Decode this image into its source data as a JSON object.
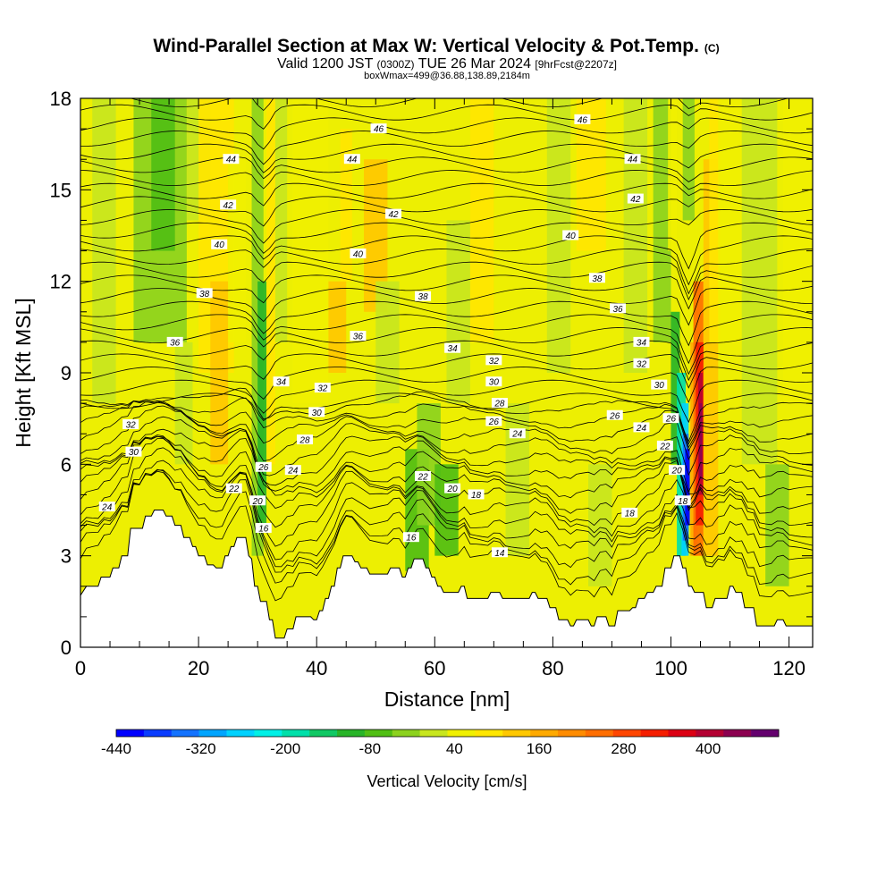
{
  "chart_data": {
    "type": "heatmap",
    "title": "Wind-Parallel Section at Max W: Vertical Velocity & Pot.Temp.",
    "title_mark": "(C)",
    "subtitle_parts": [
      "Valid 1200 JST",
      "(0300Z)",
      "TUE 26 Mar 2024",
      "[9hrFcst@2207z]"
    ],
    "subtitle2": "boxWmax=499@36.88,138.89,2184m",
    "xlabel": "Distance [nm]",
    "ylabel": "Height [Kft MSL]",
    "xlim": [
      0,
      124
    ],
    "ylim": [
      0,
      18
    ],
    "xticks": [
      "0",
      "20",
      "40",
      "60",
      "80",
      "100",
      "120"
    ],
    "yticks": [
      "0",
      "3",
      "6",
      "9",
      "12",
      "15",
      "18"
    ],
    "colorbar": {
      "title": "Vertical Velocity [cm/s]",
      "range": [
        -440,
        500
      ],
      "ticks": [
        "-440",
        "-320",
        "-200",
        "-80",
        "40",
        "160",
        "280",
        "400"
      ],
      "colors": [
        "#0000ff",
        "#0a3cff",
        "#1473ff",
        "#00a5ff",
        "#00d2ff",
        "#00f0e6",
        "#00e0aa",
        "#10c864",
        "#28b428",
        "#50be14",
        "#8cd21e",
        "#c8e61e",
        "#f0f000",
        "#ffe600",
        "#ffc800",
        "#ffaa00",
        "#ff8c00",
        "#ff6e00",
        "#ff4600",
        "#f51e00",
        "#dc0014",
        "#b40032",
        "#8c0050",
        "#64006e"
      ]
    },
    "contour_series": "Potential temperature (°C)",
    "contour_labels": [
      {
        "text": "46",
        "x": 50.5,
        "y": 17.0
      },
      {
        "text": "46",
        "x": 85,
        "y": 17.3
      },
      {
        "text": "44",
        "x": 25.5,
        "y": 16.0
      },
      {
        "text": "44",
        "x": 46,
        "y": 16.0
      },
      {
        "text": "44",
        "x": 93.5,
        "y": 16.0
      },
      {
        "text": "42",
        "x": 25,
        "y": 14.5
      },
      {
        "text": "42",
        "x": 53,
        "y": 14.2
      },
      {
        "text": "42",
        "x": 94,
        "y": 14.7
      },
      {
        "text": "40",
        "x": 23.5,
        "y": 13.2
      },
      {
        "text": "40",
        "x": 47,
        "y": 12.9
      },
      {
        "text": "40",
        "x": 83,
        "y": 13.5
      },
      {
        "text": "38",
        "x": 21,
        "y": 11.6
      },
      {
        "text": "38",
        "x": 58,
        "y": 11.5
      },
      {
        "text": "38",
        "x": 87.5,
        "y": 12.1
      },
      {
        "text": "36",
        "x": 16,
        "y": 10.0
      },
      {
        "text": "36",
        "x": 47,
        "y": 10.2
      },
      {
        "text": "36",
        "x": 91,
        "y": 11.1
      },
      {
        "text": "34",
        "x": 63,
        "y": 9.8
      },
      {
        "text": "34",
        "x": 34,
        "y": 8.7
      },
      {
        "text": "34",
        "x": 95,
        "y": 10.0
      },
      {
        "text": "32",
        "x": 41,
        "y": 8.5
      },
      {
        "text": "32",
        "x": 70,
        "y": 9.4
      },
      {
        "text": "32",
        "x": 95,
        "y": 9.3
      },
      {
        "text": "32",
        "x": 8.5,
        "y": 7.3
      },
      {
        "text": "30",
        "x": 40,
        "y": 7.7
      },
      {
        "text": "30",
        "x": 70,
        "y": 8.7
      },
      {
        "text": "30",
        "x": 98,
        "y": 8.6
      },
      {
        "text": "30",
        "x": 9,
        "y": 6.4
      },
      {
        "text": "28",
        "x": 38,
        "y": 6.8
      },
      {
        "text": "28",
        "x": 71,
        "y": 8.0
      },
      {
        "text": "26",
        "x": 31,
        "y": 5.9
      },
      {
        "text": "26",
        "x": 70,
        "y": 7.4
      },
      {
        "text": "26",
        "x": 90.5,
        "y": 7.6
      },
      {
        "text": "26",
        "x": 100,
        "y": 7.5
      },
      {
        "text": "24",
        "x": 4.5,
        "y": 4.6
      },
      {
        "text": "24",
        "x": 36,
        "y": 5.8
      },
      {
        "text": "24",
        "x": 74,
        "y": 7.0
      },
      {
        "text": "24",
        "x": 95,
        "y": 7.2
      },
      {
        "text": "22",
        "x": 26,
        "y": 5.2
      },
      {
        "text": "22",
        "x": 58,
        "y": 5.6
      },
      {
        "text": "22",
        "x": 99,
        "y": 6.6
      },
      {
        "text": "20",
        "x": 30,
        "y": 4.8
      },
      {
        "text": "20",
        "x": 63,
        "y": 5.2
      },
      {
        "text": "20",
        "x": 101,
        "y": 5.8
      },
      {
        "text": "18",
        "x": 67,
        "y": 5.0
      },
      {
        "text": "18",
        "x": 102,
        "y": 4.8
      },
      {
        "text": "18",
        "x": 93,
        "y": 4.4
      },
      {
        "text": "16",
        "x": 31,
        "y": 3.9
      },
      {
        "text": "16",
        "x": 56,
        "y": 3.6
      },
      {
        "text": "14",
        "x": 71,
        "y": 3.1
      }
    ],
    "terrain_kft": [
      [
        0,
        1.7
      ],
      [
        1,
        2.0
      ],
      [
        3,
        2.0
      ],
      [
        3.5,
        2.3
      ],
      [
        5,
        2.3
      ],
      [
        5.5,
        2.6
      ],
      [
        6.5,
        2.6
      ],
      [
        7,
        3.0
      ],
      [
        8,
        3.0
      ],
      [
        8.5,
        3.9
      ],
      [
        10.5,
        3.9
      ],
      [
        11,
        4.3
      ],
      [
        12,
        4.3
      ],
      [
        12.5,
        4.5
      ],
      [
        14,
        4.5
      ],
      [
        14.5,
        4.3
      ],
      [
        15.5,
        4.3
      ],
      [
        16,
        4.0
      ],
      [
        17,
        4.0
      ],
      [
        17.5,
        3.6
      ],
      [
        18.5,
        3.6
      ],
      [
        19,
        3.3
      ],
      [
        19.5,
        3.3
      ],
      [
        20,
        3.0
      ],
      [
        21,
        3.0
      ],
      [
        21.5,
        2.7
      ],
      [
        22.5,
        2.7
      ],
      [
        23,
        2.6
      ],
      [
        24,
        2.6
      ],
      [
        24.5,
        3.0
      ],
      [
        25,
        3.0
      ],
      [
        25.5,
        3.3
      ],
      [
        26,
        3.3
      ],
      [
        26.5,
        3.6
      ],
      [
        28,
        3.6
      ],
      [
        28.5,
        3.0
      ],
      [
        29,
        2.9
      ],
      [
        29.5,
        2.0
      ],
      [
        30,
        2.0
      ],
      [
        30.5,
        1.5
      ],
      [
        31.5,
        1.5
      ],
      [
        32,
        0.9
      ],
      [
        32.5,
        0.9
      ],
      [
        33,
        0.3
      ],
      [
        34.5,
        0.3
      ],
      [
        35,
        0.6
      ],
      [
        36,
        0.6
      ],
      [
        36.5,
        1.0
      ],
      [
        39,
        1.0
      ],
      [
        39.5,
        0.9
      ],
      [
        40,
        0.9
      ],
      [
        40.5,
        1.2
      ],
      [
        41,
        1.2
      ],
      [
        41.5,
        1.6
      ],
      [
        42,
        1.6
      ],
      [
        42.5,
        2.0
      ],
      [
        43,
        2.0
      ],
      [
        43.5,
        2.6
      ],
      [
        44,
        2.6
      ],
      [
        44.5,
        3.0
      ],
      [
        46,
        3.0
      ],
      [
        46.5,
        2.8
      ],
      [
        47,
        2.8
      ],
      [
        47.5,
        2.6
      ],
      [
        48.5,
        2.6
      ],
      [
        49,
        2.4
      ],
      [
        52,
        2.4
      ],
      [
        52.5,
        2.6
      ],
      [
        54,
        2.6
      ],
      [
        54.5,
        2.3
      ],
      [
        55,
        2.3
      ],
      [
        55.5,
        2.6
      ],
      [
        56,
        2.6
      ],
      [
        56.5,
        2.9
      ],
      [
        58,
        2.9
      ],
      [
        58.5,
        2.6
      ],
      [
        59,
        2.6
      ],
      [
        59.5,
        2.3
      ],
      [
        60,
        2.3
      ],
      [
        60.5,
        2.0
      ],
      [
        61,
        2.0
      ],
      [
        61.5,
        1.8
      ],
      [
        64,
        1.8
      ],
      [
        64.5,
        2.0
      ],
      [
        65,
        2.0
      ],
      [
        65.5,
        1.6
      ],
      [
        69,
        1.6
      ],
      [
        69.5,
        1.8
      ],
      [
        71,
        1.8
      ],
      [
        71.5,
        1.6
      ],
      [
        76,
        1.6
      ],
      [
        76.5,
        1.8
      ],
      [
        77,
        1.8
      ],
      [
        77.5,
        1.6
      ],
      [
        79,
        1.6
      ],
      [
        79.5,
        1.3
      ],
      [
        80.5,
        1.3
      ],
      [
        81,
        0.9
      ],
      [
        82.5,
        0.9
      ],
      [
        83,
        0.7
      ],
      [
        83.5,
        0.7
      ],
      [
        84,
        0.9
      ],
      [
        86,
        0.9
      ],
      [
        86.5,
        0.7
      ],
      [
        87,
        0.7
      ],
      [
        87.5,
        1.0
      ],
      [
        89,
        1.0
      ],
      [
        89.5,
        0.7
      ],
      [
        90.5,
        0.7
      ],
      [
        91,
        1.2
      ],
      [
        93,
        1.2
      ],
      [
        93.5,
        1.3
      ],
      [
        94,
        1.3
      ],
      [
        94.5,
        1.6
      ],
      [
        95.5,
        1.6
      ],
      [
        96,
        1.8
      ],
      [
        97,
        1.8
      ],
      [
        97.5,
        2.0
      ],
      [
        98.5,
        2.0
      ],
      [
        99,
        2.6
      ],
      [
        100,
        2.6
      ],
      [
        100.5,
        3.0
      ],
      [
        101.5,
        3.0
      ],
      [
        102,
        2.6
      ],
      [
        102.5,
        2.6
      ],
      [
        103,
        2.0
      ],
      [
        103.5,
        2.0
      ],
      [
        104,
        1.8
      ],
      [
        105.5,
        1.8
      ],
      [
        106,
        1.3
      ],
      [
        107,
        1.3
      ],
      [
        107.5,
        1.6
      ],
      [
        109.5,
        1.6
      ],
      [
        110,
        2.0
      ],
      [
        110.5,
        2.0
      ],
      [
        111,
        1.8
      ],
      [
        112,
        1.8
      ],
      [
        112.5,
        1.3
      ],
      [
        114,
        1.3
      ],
      [
        114.5,
        0.7
      ],
      [
        117.5,
        0.7
      ],
      [
        118,
        0.9
      ],
      [
        119,
        0.9
      ],
      [
        119.5,
        0.7
      ],
      [
        124,
        0.7
      ]
    ]
  }
}
